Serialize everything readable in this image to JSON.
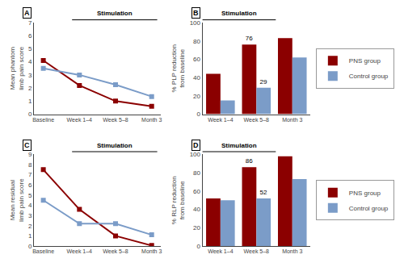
{
  "chart_data": [
    {
      "type": "line",
      "title": "A",
      "ylabel": "Mean phantom limb pain score",
      "categories": [
        "Baseline",
        "Week 1–4",
        "Week 5–8",
        "Month 3"
      ],
      "series": [
        {
          "name": "PNS group",
          "color": "#8B0000",
          "values": [
            4.1,
            2.2,
            1.0,
            0.6
          ]
        },
        {
          "name": "Control group",
          "color": "#7B9CC8",
          "values": [
            3.5,
            3.0,
            2.25,
            1.35
          ]
        }
      ],
      "ylim": [
        0,
        7
      ],
      "yticks": [
        0,
        1,
        2,
        3,
        4,
        5,
        6,
        7
      ],
      "grid": false,
      "marker": "square",
      "annotations": [
        "Stimulation"
      ]
    },
    {
      "type": "bar",
      "title": "B",
      "ylabel": "% PLP reduction from baseline",
      "categories": [
        "Week 1–4",
        "Week 5–8",
        "Month 3"
      ],
      "series": [
        {
          "name": "PNS group",
          "color": "#8B0000",
          "values": [
            44,
            76,
            83
          ],
          "value_labels": [
            null,
            "76",
            null
          ]
        },
        {
          "name": "Control group",
          "color": "#7B9CC8",
          "values": [
            15,
            29,
            62
          ],
          "value_labels": [
            null,
            "29",
            null
          ]
        }
      ],
      "ylim": [
        0,
        100
      ],
      "yticks": [
        0,
        20,
        40,
        60,
        80,
        100
      ],
      "grid": false,
      "legend": "right",
      "annotations": [
        "Stimulation"
      ]
    },
    {
      "type": "line",
      "title": "C",
      "ylabel": "Mean residual limb pain score",
      "categories": [
        "Baseline",
        "Week 1–4",
        "Week 5–8",
        "Month 3"
      ],
      "series": [
        {
          "name": "PNS group",
          "color": "#8B0000",
          "values": [
            7.5,
            3.6,
            1.0,
            0.05
          ]
        },
        {
          "name": "Control group",
          "color": "#7B9CC8",
          "values": [
            4.5,
            2.2,
            2.2,
            1.1
          ]
        }
      ],
      "ylim": [
        0,
        9
      ],
      "yticks": [
        0,
        1,
        2,
        3,
        4,
        5,
        6,
        7,
        8,
        9
      ],
      "grid": false,
      "marker": "square",
      "annotations": [
        "Stimulation"
      ]
    },
    {
      "type": "bar",
      "title": "D",
      "ylabel": "% RLP reduction from baseline",
      "categories": [
        "Week 1–4",
        "Week 5–8",
        "Month 3"
      ],
      "series": [
        {
          "name": "PNS group",
          "color": "#8B0000",
          "values": [
            52,
            86,
            98
          ],
          "value_labels": [
            null,
            "86",
            null
          ]
        },
        {
          "name": "Control group",
          "color": "#7B9CC8",
          "values": [
            50,
            52,
            73
          ],
          "value_labels": [
            null,
            "52",
            null
          ]
        }
      ],
      "ylim": [
        0,
        100
      ],
      "yticks": [
        0,
        20,
        40,
        60,
        80,
        100
      ],
      "grid": false,
      "legend": "right",
      "annotations": [
        "Stimulation"
      ]
    }
  ]
}
